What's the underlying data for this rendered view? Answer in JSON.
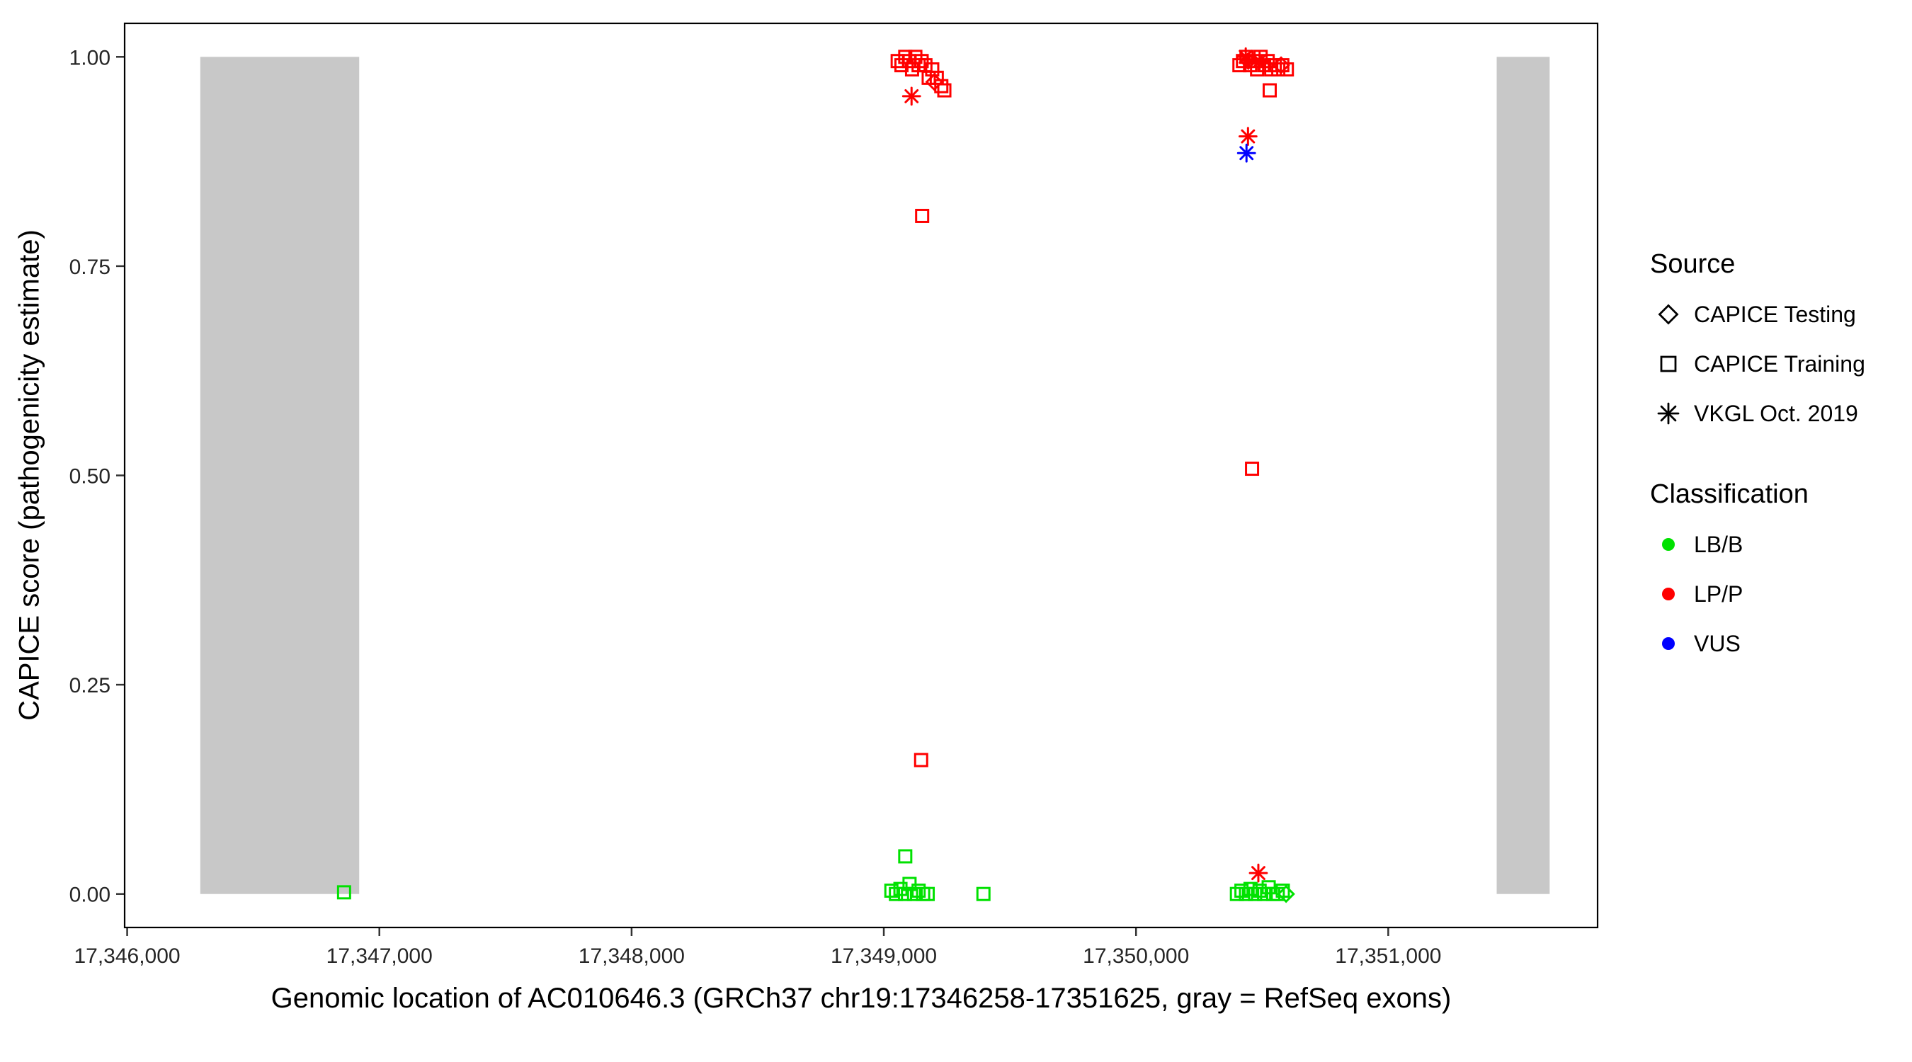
{
  "chart_data": {
    "type": "scatter",
    "title": "",
    "xlabel": "Genomic location of AC010646.3 (GRCh37 chr19:17346258-17351625, gray = RefSeq exons)",
    "ylabel": "CAPICE score (pathogenicity estimate)",
    "xlim": [
      17345990,
      17351830
    ],
    "ylim": [
      -0.04,
      1.04
    ],
    "grid": false,
    "xticks": {
      "values": [
        17346000,
        17347000,
        17348000,
        17349000,
        17350000,
        17351000
      ],
      "labels": [
        "17,346,000",
        "17,347,000",
        "17,348,000",
        "17,349,000",
        "17,350,000",
        "17,351,000"
      ]
    },
    "yticks": {
      "values": [
        0,
        0.25,
        0.5,
        0.75,
        1
      ],
      "labels": [
        "0.00",
        "0.25",
        "0.50",
        "0.75",
        "1.00"
      ]
    },
    "exons": {
      "color": "#c8c8c8",
      "meaning": "gray = RefSeq exons",
      "regions": [
        {
          "start": 17346290,
          "end": 17346920,
          "y0": 0,
          "y1": 1
        },
        {
          "start": 17351430,
          "end": 17351640,
          "y0": 0,
          "y1": 1
        }
      ]
    },
    "shape_map": {
      "CAPICE Testing": "diamond",
      "CAPICE Training": "square",
      "VKGL Oct. 2019": "asterisk"
    },
    "color_map": {
      "LB/B": "#00e100",
      "LP/P": "#ff0000",
      "VUS": "#0000ff"
    },
    "series": [
      {
        "source": "CAPICE Training",
        "classification": "LP/P",
        "shape": "square",
        "color": "#ff0000",
        "points": [
          [
            17349055,
            0.995
          ],
          [
            17349070,
            0.99
          ],
          [
            17349085,
            1.0
          ],
          [
            17349100,
            0.995
          ],
          [
            17349112,
            0.985
          ],
          [
            17349125,
            1.0
          ],
          [
            17349138,
            0.99
          ],
          [
            17349150,
            0.995
          ],
          [
            17349165,
            0.99
          ],
          [
            17349178,
            0.975
          ],
          [
            17349192,
            0.985
          ],
          [
            17349210,
            0.975
          ],
          [
            17349228,
            0.965
          ],
          [
            17349240,
            0.96
          ],
          [
            17349152,
            0.81
          ],
          [
            17349148,
            0.16
          ],
          [
            17350410,
            0.99
          ],
          [
            17350424,
            0.995
          ],
          [
            17350438,
            1.0
          ],
          [
            17350452,
            0.99
          ],
          [
            17350466,
            0.995
          ],
          [
            17350480,
            0.985
          ],
          [
            17350494,
            1.0
          ],
          [
            17350508,
            0.99
          ],
          [
            17350522,
            0.995
          ],
          [
            17350536,
            0.985
          ],
          [
            17350550,
            0.99
          ],
          [
            17350564,
            0.985
          ],
          [
            17350580,
            0.99
          ],
          [
            17350598,
            0.985
          ],
          [
            17350530,
            0.96
          ],
          [
            17350460,
            0.508
          ]
        ]
      },
      {
        "source": "CAPICE Testing",
        "classification": "LP/P",
        "shape": "diamond",
        "color": "#ff0000",
        "points": [
          [
            17349200,
            0.97
          ],
          [
            17350445,
            0.995
          ],
          [
            17350575,
            0.99
          ]
        ]
      },
      {
        "source": "VKGL Oct. 2019",
        "classification": "LP/P",
        "shape": "asterisk",
        "color": "#ff0000",
        "points": [
          [
            17349110,
            0.953
          ],
          [
            17350435,
            1.0
          ],
          [
            17350490,
            0.995
          ],
          [
            17350444,
            0.905
          ],
          [
            17350485,
            0.025
          ]
        ]
      },
      {
        "source": "VKGL Oct. 2019",
        "classification": "VUS",
        "shape": "asterisk",
        "color": "#0000ff",
        "points": [
          [
            17350438,
            0.885
          ]
        ]
      },
      {
        "source": "CAPICE Training",
        "classification": "LB/B",
        "shape": "square",
        "color": "#00e100",
        "points": [
          [
            17346860,
            0.002
          ],
          [
            17349030,
            0.004
          ],
          [
            17349048,
            0.0
          ],
          [
            17349066,
            0.006
          ],
          [
            17349084,
            0.0
          ],
          [
            17349102,
            0.012
          ],
          [
            17349120,
            0.0
          ],
          [
            17349138,
            0.004
          ],
          [
            17349156,
            0.0
          ],
          [
            17349174,
            0.0
          ],
          [
            17349085,
            0.045
          ],
          [
            17349395,
            0.0
          ],
          [
            17350400,
            0.0
          ],
          [
            17350418,
            0.004
          ],
          [
            17350436,
            0.0
          ],
          [
            17350454,
            0.006
          ],
          [
            17350472,
            0.0
          ],
          [
            17350490,
            0.004
          ],
          [
            17350508,
            0.0
          ],
          [
            17350526,
            0.008
          ],
          [
            17350544,
            0.0
          ],
          [
            17350562,
            0.0
          ],
          [
            17350582,
            0.004
          ]
        ]
      },
      {
        "source": "CAPICE Testing",
        "classification": "LB/B",
        "shape": "diamond",
        "color": "#00e100",
        "points": [
          [
            17350595,
            0.0
          ]
        ]
      }
    ]
  },
  "legend": {
    "groups": [
      {
        "title": "Source",
        "items": [
          {
            "label": "CAPICE Testing",
            "shape": "diamond",
            "color": "#000000"
          },
          {
            "label": "CAPICE Training",
            "shape": "square",
            "color": "#000000"
          },
          {
            "label": "VKGL Oct. 2019",
            "shape": "asterisk",
            "color": "#000000"
          }
        ]
      },
      {
        "title": "Classification",
        "items": [
          {
            "label": "LB/B",
            "shape": "circle",
            "color": "#00e100"
          },
          {
            "label": "LP/P",
            "shape": "circle",
            "color": "#ff0000"
          },
          {
            "label": "VUS",
            "shape": "circle",
            "color": "#0000ff"
          }
        ]
      }
    ]
  }
}
